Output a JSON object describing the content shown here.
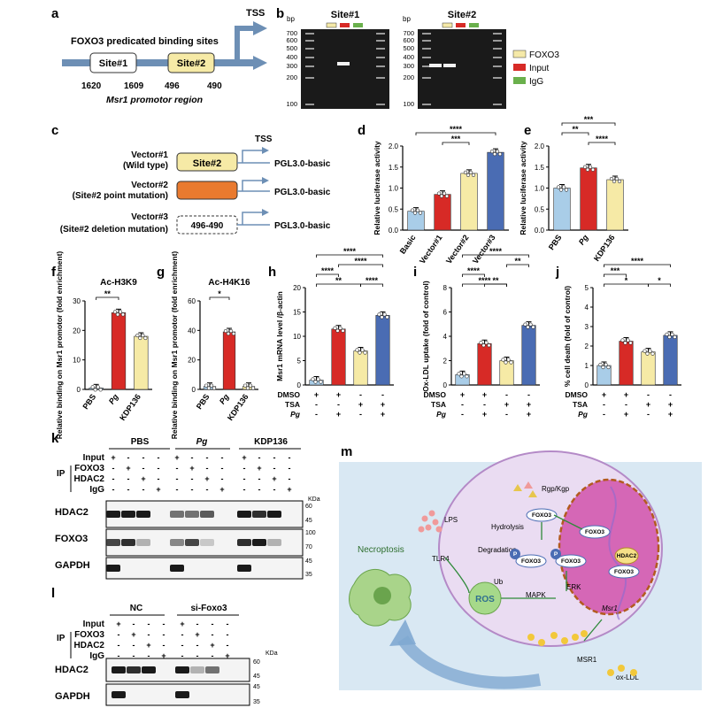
{
  "colors": {
    "foxo3": "#f5e9a8",
    "input": "#d72a26",
    "igg": "#6ab04c",
    "yellow": "#f6eaa6",
    "red": "#d72a26",
    "blue": "#4a6cb3",
    "lightblue": "#a9cde8",
    "orange": "#e97a2f",
    "line": "#6d8fb5"
  },
  "panel_labels": [
    "a",
    "b",
    "c",
    "d",
    "e",
    "f",
    "g",
    "h",
    "i",
    "j",
    "k",
    "l",
    "m"
  ],
  "a": {
    "title": "FOXO3 predicated binding sites",
    "tss": "TSS",
    "site1": "Site#1",
    "site2": "Site#2",
    "n1620": "1620",
    "n1609": "1609",
    "n496": "496",
    "n490": "490",
    "region": "Msr1 promotor region"
  },
  "b": {
    "site1": "Site#1",
    "site2": "Site#2",
    "bp": "bp",
    "ladder": [
      "700",
      "600",
      "500",
      "400",
      "300",
      "200",
      "100"
    ],
    "legend": [
      "FOXO3",
      "Input",
      "IgG"
    ]
  },
  "c": {
    "tss": "TSS",
    "v1": "Vector#1",
    "v1s": "(Wild type)",
    "v2": "Vector#2",
    "v2s": "(Site#2 point mutation)",
    "v3": "Vector#3",
    "v3s": "(Site#2 deletion mutation)",
    "site2": "Site#2",
    "del": "496-490",
    "pgl": "PGL3.0-basic"
  },
  "chart_data": [
    {
      "panel": "d",
      "type": "bar",
      "categories": [
        "Basic",
        "Vector#1",
        "Vector#2",
        "Vector#3"
      ],
      "values": [
        0.45,
        0.85,
        1.35,
        1.85
      ],
      "ylabel": "Relative luciferase activity",
      "ylim": [
        0,
        2.0
      ],
      "yticks": [
        "0.0",
        "0.5",
        "1.0",
        "1.5",
        "2.0"
      ],
      "sig": [
        "***",
        "****"
      ]
    },
    {
      "panel": "e",
      "type": "bar",
      "categories": [
        "PBS",
        "Pg",
        "KDP136"
      ],
      "values": [
        1.0,
        1.48,
        1.2
      ],
      "ylabel": "Relative luciferase activity",
      "ylim": [
        0,
        2.0
      ],
      "yticks": [
        "0.0",
        "0.5",
        "1.0",
        "1.5",
        "2.0"
      ],
      "sig": [
        "**",
        "****",
        "***"
      ]
    },
    {
      "panel": "f",
      "type": "bar",
      "title": "Ac-H3K9",
      "categories": [
        "PBS",
        "Pg",
        "KDP136"
      ],
      "values": [
        0.5,
        26,
        18
      ],
      "ylabel": "Relative binding on Msr1 promotor (fold enrichment)",
      "ylim": [
        0,
        30
      ],
      "yticks": [
        "0",
        "10",
        "20",
        "30"
      ],
      "sig": [
        "**"
      ]
    },
    {
      "panel": "g",
      "type": "bar",
      "title": "Ac-H4K16",
      "categories": [
        "PBS",
        "Pg",
        "KDP136"
      ],
      "values": [
        2,
        39,
        2
      ],
      "ylabel": "Relative binding on Msr1 promotor (fold enrichment)",
      "ylim": [
        0,
        60
      ],
      "yticks": [
        "0",
        "20",
        "40",
        "60"
      ],
      "sig": [
        "*"
      ]
    },
    {
      "panel": "h",
      "type": "bar",
      "categories": [
        "1",
        "2",
        "3",
        "4"
      ],
      "values": [
        1,
        11.5,
        7,
        14.3
      ],
      "ylabel": "Msr1 mRNA level /β-actin",
      "ylim": [
        0,
        20
      ],
      "yticks": [
        "0",
        "5",
        "10",
        "15",
        "20"
      ],
      "sig": [
        "****",
        "****",
        "****",
        "****",
        "**"
      ]
    },
    {
      "panel": "i",
      "type": "bar",
      "categories": [
        "1",
        "2",
        "3",
        "4"
      ],
      "values": [
        0.85,
        3.4,
        2.0,
        4.9
      ],
      "ylabel": "Ox-LDL uptake (fold of control)",
      "ylim": [
        0,
        8
      ],
      "yticks": [
        "0",
        "2",
        "4",
        "6",
        "8"
      ],
      "sig": [
        "****",
        "**",
        "****",
        "**",
        "****"
      ]
    },
    {
      "panel": "j",
      "type": "bar",
      "categories": [
        "1",
        "2",
        "3",
        "4"
      ],
      "values": [
        1.0,
        2.25,
        1.7,
        2.55
      ],
      "ylabel": "% cell death (fold of control)",
      "ylim": [
        0,
        5
      ],
      "yticks": [
        "0",
        "1",
        "2",
        "3",
        "4",
        "5"
      ],
      "sig": [
        "***",
        "*",
        "****",
        "*"
      ]
    }
  ],
  "hij": {
    "rows": [
      "DMSO",
      "TSA",
      "Pg"
    ],
    "marks": [
      [
        "+",
        "+",
        "-",
        "-"
      ],
      [
        "-",
        "-",
        "+",
        "+"
      ],
      [
        "-",
        "+",
        "-",
        "+"
      ]
    ]
  },
  "k": {
    "groups": [
      "PBS",
      "Pg",
      "KDP136"
    ],
    "rows": [
      "Input",
      "FOXO3",
      "HDAC2",
      "IgG"
    ],
    "ip": "IP",
    "blots": [
      "HDAC2",
      "FOXO3",
      "GAPDH"
    ],
    "kda": "KDa",
    "m1": [
      "60",
      "45"
    ],
    "m2": [
      "100",
      "70"
    ],
    "m3": [
      "45",
      "35"
    ]
  },
  "l": {
    "groups": [
      "NC",
      "si-Foxo3"
    ],
    "rows": [
      "Input",
      "FOXO3",
      "HDAC2",
      "IgG"
    ],
    "ip": "IP",
    "blots": [
      "HDAC2",
      "GAPDH"
    ],
    "kda": "KDa",
    "m1": [
      "60",
      "45"
    ],
    "m2": [
      "45",
      "35"
    ]
  },
  "m": {
    "rgp": "Rgp/Kgp",
    "lps": "LPS",
    "tlr4": "TLR4",
    "hydro": "Hydrolysis",
    "degr": "Degradation",
    "ub": "Ub",
    "foxo3": "FOXO3",
    "p": "P",
    "hdac2": "HDAC2",
    "erk": "ERK",
    "mapk": "MAPK",
    "ros": "ROS",
    "msr1g": "Msr1",
    "msr1": "MSR1",
    "oxldl": "ox-LDL",
    "necro": "Necroptosis"
  }
}
